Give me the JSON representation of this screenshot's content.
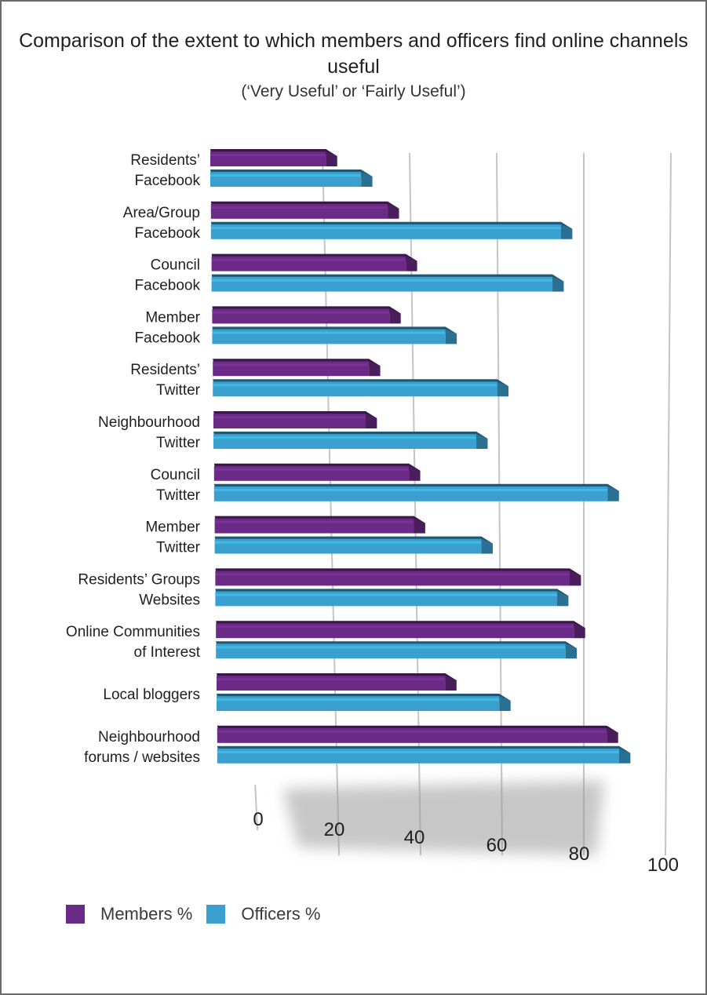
{
  "chart_data": {
    "type": "bar",
    "orientation": "horizontal",
    "title": "Comparison of the extent to which members and officers find online channels useful",
    "subtitle": "(‘Very Useful’ or ‘Fairly Useful’)",
    "xlabel": "",
    "ylabel": "",
    "xlim": [
      0,
      100
    ],
    "x_ticks": [
      "0",
      "20",
      "40",
      "60",
      "80",
      "100"
    ],
    "grid": true,
    "legend_position": "bottom-left",
    "categories": [
      [
        "Residents’",
        "Facebook"
      ],
      [
        "Area/Group",
        "Facebook"
      ],
      [
        "Council",
        "Facebook"
      ],
      [
        "Member",
        "Facebook"
      ],
      [
        "Residents’",
        "Twitter"
      ],
      [
        "Neighbourhood",
        "Twitter"
      ],
      [
        "Council",
        "Twitter"
      ],
      [
        "Member",
        "Twitter"
      ],
      [
        "Residents’ Groups",
        "Websites"
      ],
      [
        "Online Communities",
        "of Interest"
      ],
      [
        "Local bloggers"
      ],
      [
        "Neighbourhood",
        "forums / websites"
      ]
    ],
    "series": [
      {
        "name": "Members %",
        "color": "#6a2a85",
        "values": [
          24,
          38,
          42,
          38,
          33,
          32,
          42,
          43,
          80,
          81,
          50,
          89
        ]
      },
      {
        "name": "Officers %",
        "color": "#3aa0d0",
        "values": [
          32,
          78,
          76,
          51,
          63,
          58,
          89,
          59,
          77,
          79,
          63,
          92
        ]
      }
    ]
  }
}
